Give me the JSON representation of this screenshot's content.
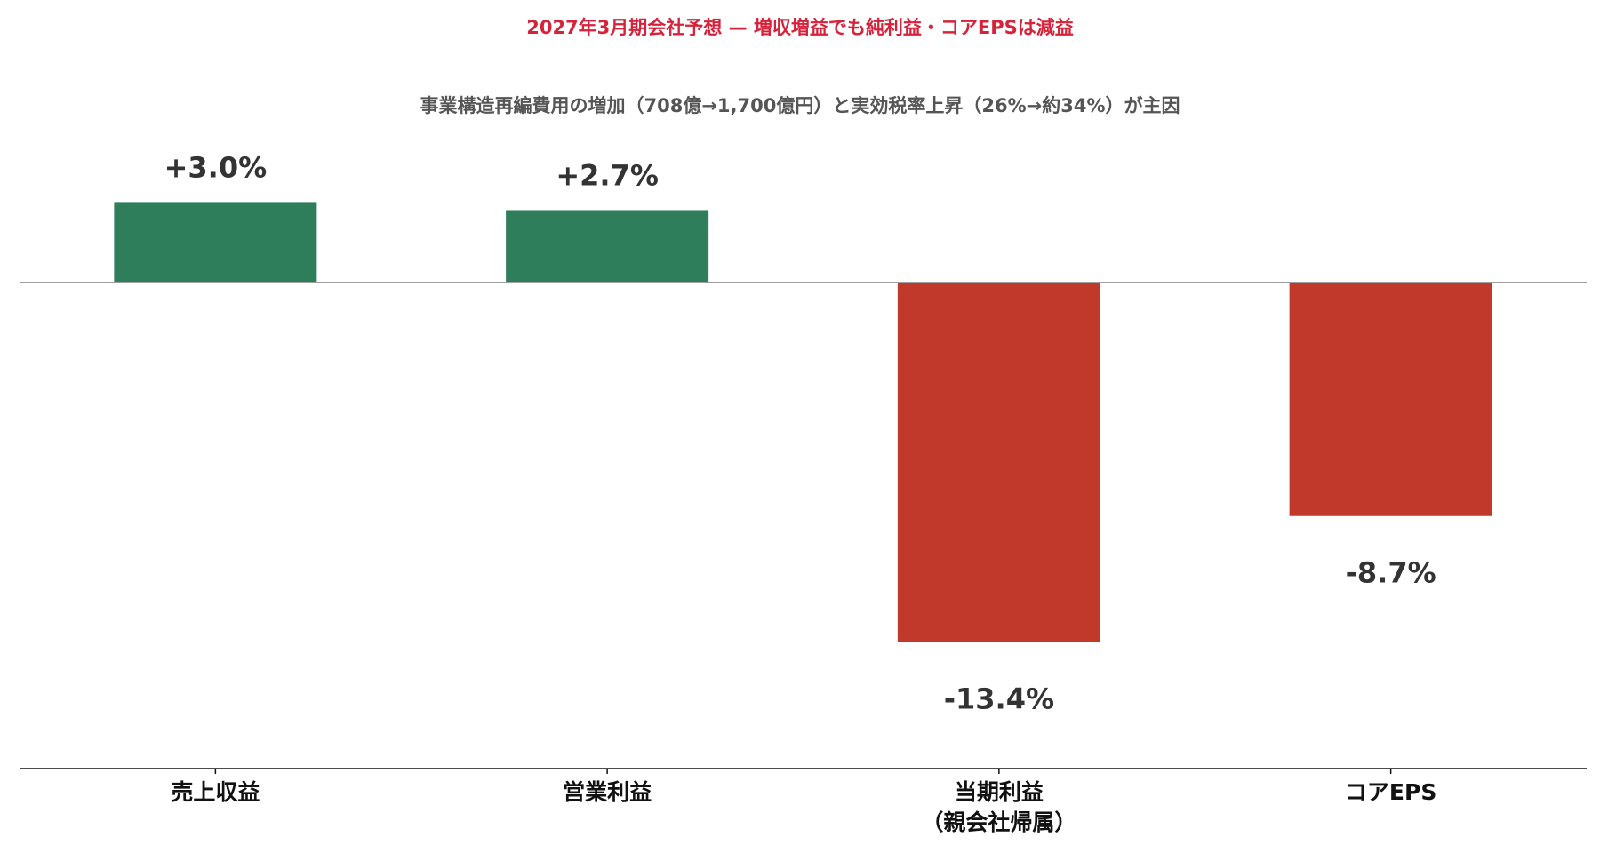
{
  "chart_data": {
    "type": "bar",
    "title": "2027年3月期会社予想 — 増収増益でも純利益・コアEPSは減益",
    "subtitle": "事業構造再編費用の増加（708億→1,700億円）と実効税率上昇（26%→約34%）が主因",
    "categories": [
      [
        "売上収益"
      ],
      [
        "営業利益"
      ],
      [
        "当期利益",
        "（親会社帰属）"
      ],
      [
        "コアEPS"
      ]
    ],
    "values": [
      3.0,
      2.7,
      -13.4,
      -8.7
    ],
    "value_labels": [
      "+3.0%",
      "+2.7%",
      "-13.4%",
      "-8.7%"
    ],
    "ylim": [
      -18,
      6
    ],
    "xlabel": "",
    "ylabel": "",
    "grid": false,
    "colors": {
      "positive": "#2e7d5b",
      "negative": "#c0392b",
      "title": "#d6223a",
      "subtitle": "#555555",
      "zero_line": "#9e9e9e",
      "baseline": "#111111"
    }
  }
}
